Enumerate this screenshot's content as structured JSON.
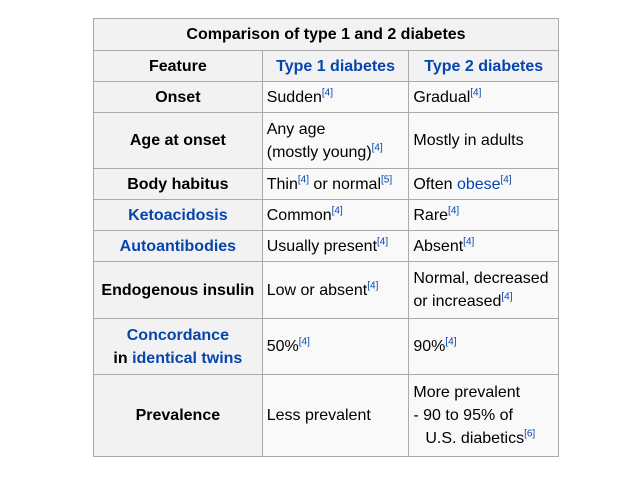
{
  "table": {
    "caption": "Comparison of type 1 and 2 diabetes",
    "headers": {
      "feature": "Feature",
      "type1": "Type 1 diabetes",
      "type2": "Type 2 diabetes"
    },
    "rows": {
      "onset": {
        "feature": "Onset",
        "t1": "Sudden",
        "t1_ref": "[4]",
        "t2": "Gradual",
        "t2_ref": "[4]"
      },
      "age": {
        "feature": "Age at onset",
        "t1_line1": "Any age",
        "t1_line2": "(mostly young)",
        "t1_ref": "[4]",
        "t2": "Mostly in adults"
      },
      "habitus": {
        "feature": "Body habitus",
        "t1_a": "Thin",
        "t1_ref_a": "[4]",
        "t1_b": " or normal",
        "t1_ref_b": "[5]",
        "t2_a": "Often ",
        "t2_link": "obese",
        "t2_ref": "[4]"
      },
      "keto": {
        "feature": "Ketoacidosis",
        "t1": "Common",
        "t1_ref": "[4]",
        "t2": "Rare",
        "t2_ref": "[4]"
      },
      "auto": {
        "feature": "Autoantibodies",
        "t1": "Usually present",
        "t1_ref": "[4]",
        "t2": "Absent",
        "t2_ref": "[4]"
      },
      "insulin": {
        "feature": "Endogenous insulin",
        "t1": "Low or absent",
        "t1_ref": "[4]",
        "t2_line1": "Normal, decreased",
        "t2_line2": "or increased",
        "t2_ref": "[4]"
      },
      "concordance": {
        "feature_line1": "Concordance",
        "feature_in": "in ",
        "feature_link": "identical twins",
        "t1": "50%",
        "t1_ref": "[4]",
        "t2": "90%",
        "t2_ref": "[4]"
      },
      "prevalence": {
        "feature": "Prevalence",
        "t1": "Less prevalent",
        "t2_line1": "More prevalent",
        "t2_line2": "- 90 to 95% of",
        "t2_line3": "U.S. diabetics",
        "t2_ref": "[6]"
      }
    }
  }
}
